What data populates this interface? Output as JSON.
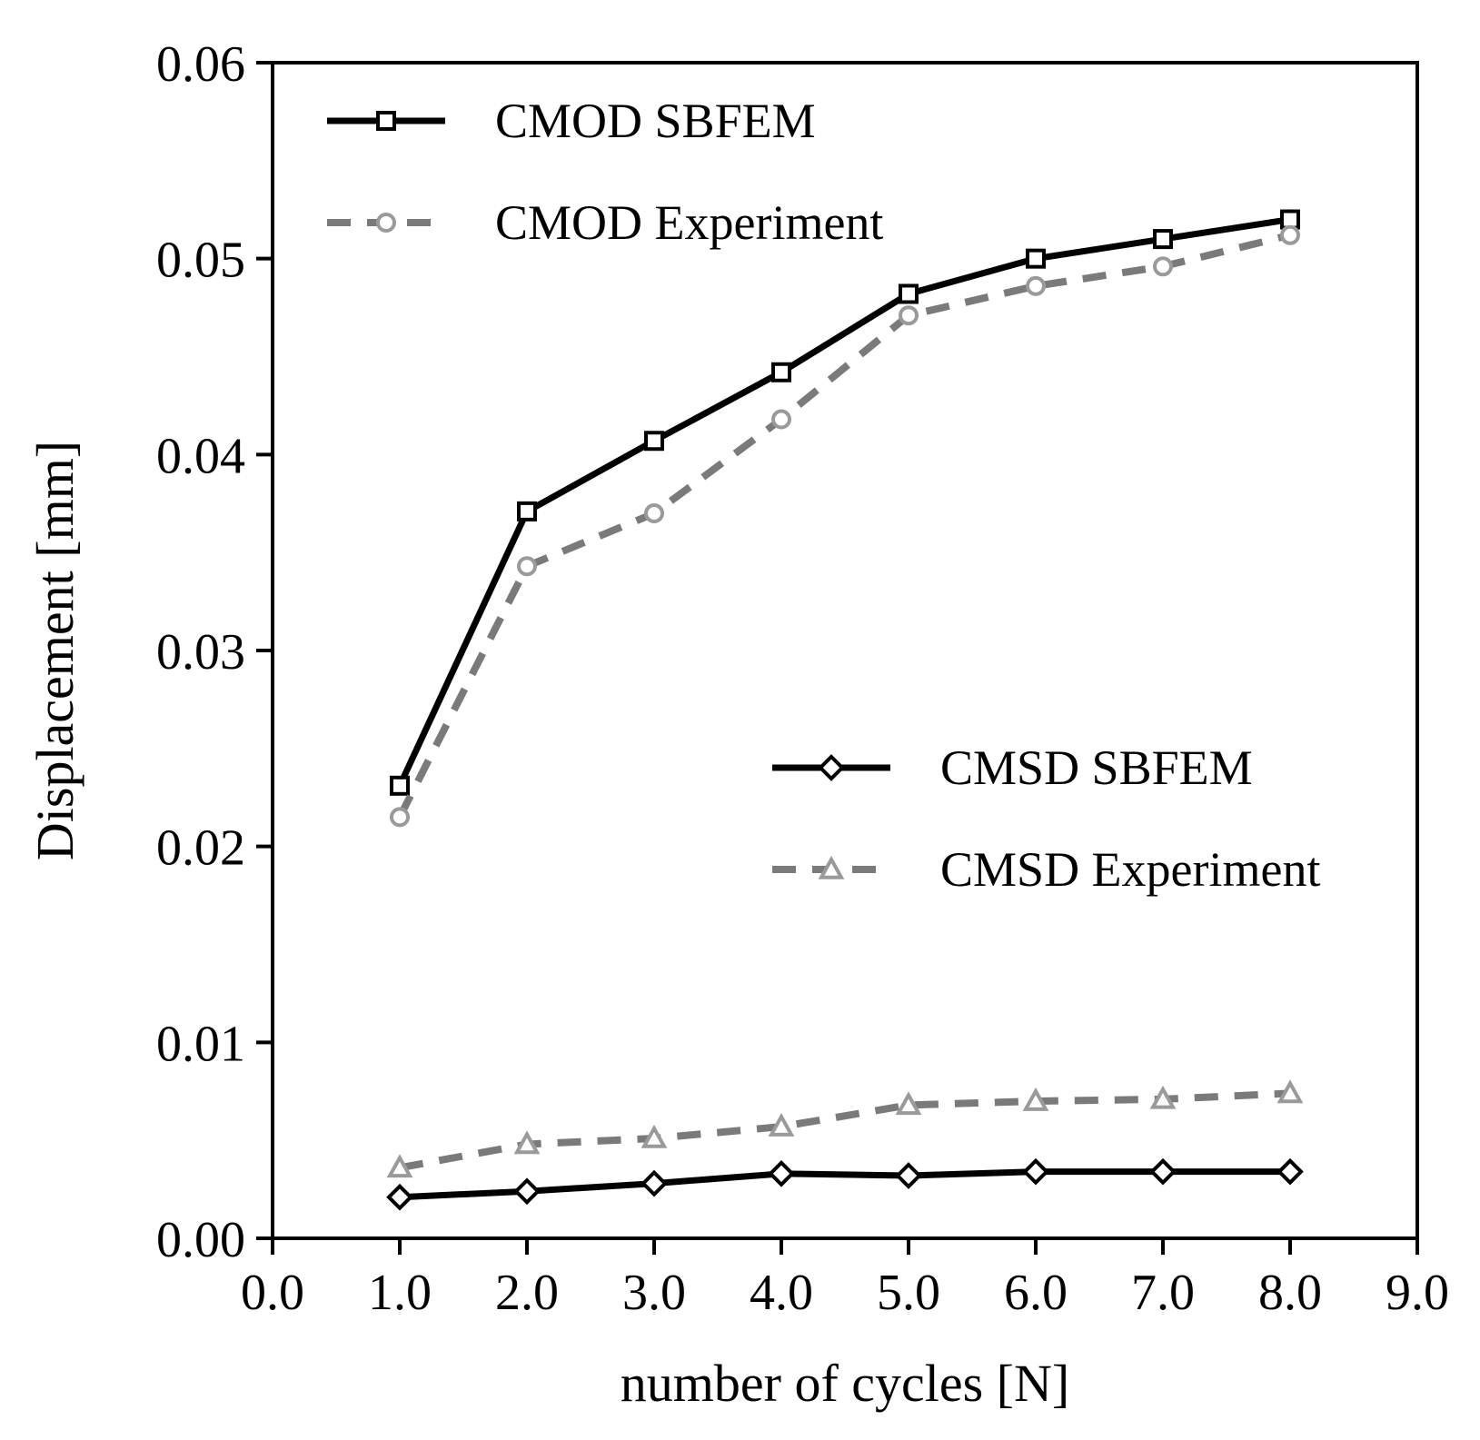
{
  "chart_data": {
    "type": "line",
    "xlabel": "number of cycles [N]",
    "ylabel": "Displacement [mm]",
    "xlim": [
      0,
      9
    ],
    "ylim": [
      0,
      0.06
    ],
    "xticks": [
      "0.0",
      "1.0",
      "2.0",
      "3.0",
      "4.0",
      "5.0",
      "6.0",
      "7.0",
      "8.0",
      "9.0"
    ],
    "yticks": [
      "0.00",
      "0.01",
      "0.02",
      "0.03",
      "0.04",
      "0.05",
      "0.06"
    ],
    "grid": false,
    "x": [
      1,
      2,
      3,
      4,
      5,
      6,
      7,
      8
    ],
    "series": [
      {
        "name": "CMOD SBFEM",
        "values": [
          0.0231,
          0.0371,
          0.0407,
          0.0442,
          0.0482,
          0.05,
          0.051,
          0.052
        ],
        "color": "#000000",
        "dashed": false,
        "marker": "square"
      },
      {
        "name": "CMOD Experiment",
        "values": [
          0.0215,
          0.0343,
          0.037,
          0.0418,
          0.0471,
          0.0486,
          0.0496,
          0.0512
        ],
        "color": "#9a9a9a",
        "dashed": true,
        "marker": "circle"
      },
      {
        "name": "CMSD SBFEM",
        "values": [
          0.0021,
          0.0024,
          0.0028,
          0.0033,
          0.0032,
          0.0034,
          0.0034,
          0.0034
        ],
        "color": "#000000",
        "dashed": false,
        "marker": "diamond"
      },
      {
        "name": "CMSD Experiment",
        "values": [
          0.0036,
          0.0048,
          0.0051,
          0.0057,
          0.0068,
          0.007,
          0.0071,
          0.0074
        ],
        "color": "#9a9a9a",
        "dashed": true,
        "marker": "triangle"
      }
    ],
    "legends": [
      {
        "placement": "top-left",
        "series": [
          0,
          1
        ]
      },
      {
        "placement": "center-right",
        "series": [
          2,
          3
        ]
      }
    ]
  }
}
